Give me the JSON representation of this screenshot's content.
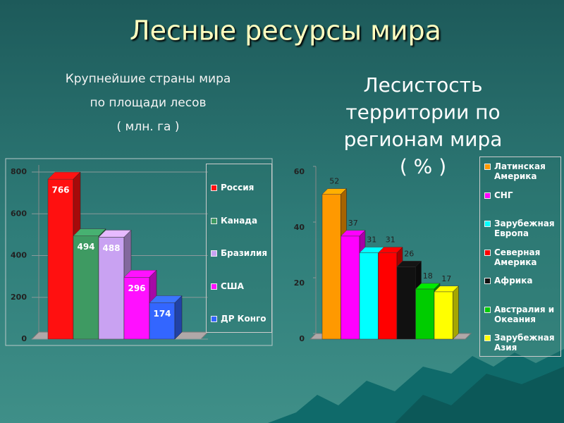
{
  "title": "Лесные ресурсы мира",
  "chart_data": [
    {
      "type": "bar",
      "title": [
        "Крупнейшие страны мира",
        "по площади лесов",
        "( млн. га )"
      ],
      "categories": [
        "Россия",
        "Канада",
        "Бразилия",
        "США",
        "ДР Конго"
      ],
      "values": [
        766,
        494,
        488,
        296,
        174
      ],
      "colors": [
        "#ff1010",
        "#3e9a62",
        "#c9a2f2",
        "#ff10ff",
        "#3366ff"
      ],
      "ylim": [
        0,
        800
      ],
      "yticks": [
        0,
        200,
        400,
        600,
        800
      ],
      "grid": true
    },
    {
      "type": "bar",
      "title": [
        "Лесистость",
        "территории по",
        "регионам мира",
        "( % )"
      ],
      "categories": [
        "Латинская Америка",
        "СНГ",
        "Зарубежная Европа",
        "Северная Америка",
        "Африка",
        "Австралия и Океания",
        "Зарубежная Азия"
      ],
      "values": [
        52,
        37,
        31,
        31,
        26,
        18,
        17
      ],
      "colors": [
        "#ff9900",
        "#ff00ff",
        "#00ffff",
        "#ff0000",
        "#111111",
        "#00cc00",
        "#ffff00"
      ],
      "ylim": [
        0,
        60
      ],
      "yticks": [
        0,
        20,
        40,
        60
      ],
      "grid": false
    }
  ]
}
